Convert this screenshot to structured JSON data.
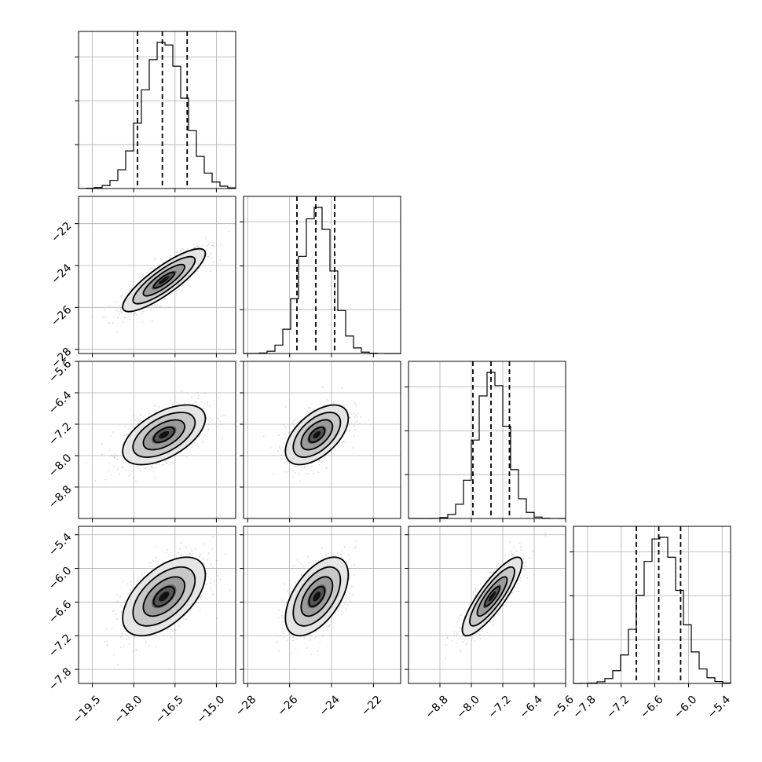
{
  "chart_data": {
    "type": "corner",
    "grid": true,
    "parameters": [
      {
        "index": 0,
        "mean": -16.9,
        "sd": 0.75,
        "quantiles": [
          -17.86,
          -16.96,
          -16.06
        ],
        "range": [
          -20.0,
          -14.3
        ],
        "ticks": [
          -19.5,
          -18.0,
          -16.5,
          -15.0
        ],
        "tick_labels": [
          "−19.5",
          "−18.0",
          "−16.5",
          "−15.0"
        ]
      },
      {
        "index": 1,
        "mean": -24.7,
        "sd": 0.75,
        "quantiles": [
          -25.65,
          -24.75,
          -23.85
        ],
        "range": [
          -28.2,
          -20.7
        ],
        "ticks": [
          -28,
          -26,
          -24,
          -22
        ],
        "tick_labels": [
          "−28",
          "−26",
          "−24",
          "−22"
        ]
      },
      {
        "index": 2,
        "mean": -7.47,
        "sd": 0.38,
        "quantiles": [
          -7.96,
          -7.5,
          -7.03
        ],
        "range": [
          -9.6,
          -5.6
        ],
        "ticks": [
          -8.8,
          -8.0,
          -7.2,
          -6.4,
          -5.6
        ],
        "tick_labels": [
          "−8.8",
          "−8.0",
          "−7.2",
          "−6.4",
          "−5.6"
        ]
      },
      {
        "index": 3,
        "mean": -6.5,
        "sd": 0.35,
        "quantiles": [
          -6.93,
          -6.53,
          -6.14
        ],
        "range": [
          -8.05,
          -5.25
        ],
        "ticks": [
          -7.8,
          -7.2,
          -6.6,
          -6.0,
          -5.4
        ],
        "tick_labels": [
          "−7.8",
          "−7.2",
          "−6.6",
          "−6.0",
          "−5.4"
        ]
      }
    ],
    "correlations": {
      "1-0": 0.85,
      "2-0": 0.55,
      "2-1": 0.55,
      "3-0": 0.55,
      "3-1": 0.55,
      "3-2": 0.85
    },
    "histogram_bins": 20,
    "contour_levels_sigma": [
      0.5,
      1.0,
      1.5,
      2.0
    ]
  }
}
